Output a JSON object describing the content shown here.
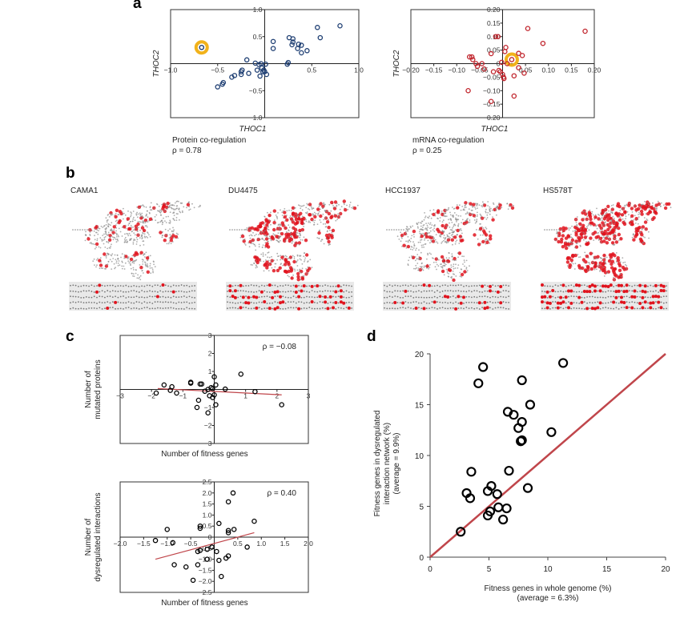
{
  "panel_labels": {
    "a": "a",
    "b": "b",
    "c": "c",
    "d": "d"
  },
  "panel_b": {
    "cell_lines": [
      "CAMA1",
      "DU4475",
      "HCC1937",
      "HS578T"
    ]
  },
  "colors": {
    "blue": "#1f3f73",
    "red": "#c0232b",
    "highlight": "#f1b21b",
    "black": "#000000",
    "fit_line": "#c0464b"
  },
  "chart_data": [
    {
      "id": "a1",
      "type": "scatter",
      "xlabel": "THOC1",
      "ylabel": "THOC2",
      "caption": "Protein co-regulation",
      "stat": "ρ = 0.78",
      "xlim": [
        -1,
        1
      ],
      "ylim": [
        -1,
        1
      ],
      "xticks": [
        [
          -1,
          "−1.0"
        ],
        [
          -0.5,
          "−0.5"
        ],
        [
          0.5,
          "0.5"
        ],
        [
          1,
          "1.0"
        ]
      ],
      "yticks": [
        [
          1,
          "1.0"
        ],
        [
          0.5,
          "0.5"
        ],
        [
          -0.5,
          "−0.5"
        ],
        [
          -1,
          "−1.0"
        ]
      ],
      "highlight": [
        -0.67,
        0.3
      ],
      "points": [
        [
          -0.5,
          -0.43
        ],
        [
          -0.45,
          -0.38
        ],
        [
          -0.44,
          -0.35
        ],
        [
          -0.35,
          -0.25
        ],
        [
          -0.32,
          -0.22
        ],
        [
          -0.25,
          -0.2
        ],
        [
          -0.25,
          -0.15
        ],
        [
          -0.24,
          -0.12
        ],
        [
          -0.17,
          -0.18
        ],
        [
          -0.19,
          0.07
        ],
        [
          -0.1,
          0.01
        ],
        [
          -0.08,
          -0.12
        ],
        [
          -0.06,
          -0.02
        ],
        [
          -0.04,
          0.0
        ],
        [
          -0.03,
          -0.08
        ],
        [
          -0.05,
          -0.23
        ],
        [
          -0.02,
          -0.15
        ],
        [
          -0.01,
          -0.12
        ],
        [
          0.0,
          -0.15
        ],
        [
          0.01,
          -0.01
        ],
        [
          0.02,
          -0.2
        ],
        [
          0.09,
          0.41
        ],
        [
          0.09,
          0.28
        ],
        [
          0.24,
          -0.01
        ],
        [
          0.25,
          0.02
        ],
        [
          0.26,
          0.48
        ],
        [
          0.29,
          0.35
        ],
        [
          0.3,
          0.46
        ],
        [
          0.3,
          0.4
        ],
        [
          0.35,
          0.28
        ],
        [
          0.36,
          0.36
        ],
        [
          0.39,
          0.34
        ],
        [
          0.39,
          0.2
        ],
        [
          0.45,
          0.24
        ],
        [
          0.56,
          0.67
        ],
        [
          0.59,
          0.48
        ],
        [
          0.8,
          0.7
        ]
      ]
    },
    {
      "id": "a2",
      "type": "scatter",
      "xlabel": "THOC1",
      "ylabel": "THOC2",
      "caption": "mRNA co-regulation",
      "stat": "ρ = 0.25",
      "xlim": [
        -0.2,
        0.2
      ],
      "ylim": [
        -0.2,
        0.2
      ],
      "xticks": [
        [
          -0.2,
          "−0.20"
        ],
        [
          -0.15,
          "−0.15"
        ],
        [
          -0.1,
          "−0.10"
        ],
        [
          -0.05,
          "−0.05"
        ],
        [
          0.05,
          "0.05"
        ],
        [
          0.1,
          "0.10"
        ],
        [
          0.15,
          "0.15"
        ],
        [
          0.2,
          "0.20"
        ]
      ],
      "yticks": [
        [
          0.2,
          "0.20"
        ],
        [
          0.15,
          "0.15"
        ],
        [
          0.1,
          "0.10"
        ],
        [
          0.05,
          "0.05"
        ],
        [
          0,
          "0"
        ],
        [
          -0.05,
          "−0.05"
        ],
        [
          -0.1,
          "−0.10"
        ],
        [
          -0.15,
          "−0.15"
        ],
        [
          -0.2,
          "−0.20"
        ]
      ],
      "highlight": [
        0.02,
        0.015
      ],
      "points": [
        [
          -0.075,
          -0.1
        ],
        [
          -0.072,
          0.025
        ],
        [
          -0.067,
          0.025
        ],
        [
          -0.065,
          0.015
        ],
        [
          -0.058,
          0.0
        ],
        [
          -0.055,
          -0.01
        ],
        [
          -0.045,
          0.0
        ],
        [
          -0.04,
          -0.02
        ],
        [
          -0.025,
          0.037
        ],
        [
          -0.025,
          -0.14
        ],
        [
          -0.02,
          -0.03
        ],
        [
          -0.015,
          0.1
        ],
        [
          -0.01,
          0.1
        ],
        [
          -0.008,
          -0.025
        ],
        [
          -0.005,
          -0.03
        ],
        [
          -0.002,
          0.005
        ],
        [
          0.0,
          -0.04
        ],
        [
          0.002,
          -0.05
        ],
        [
          0.003,
          -0.055
        ],
        [
          0.005,
          0.045
        ],
        [
          0.007,
          0.06
        ],
        [
          0.01,
          0.0
        ],
        [
          0.025,
          -0.045
        ],
        [
          0.025,
          -0.12
        ],
        [
          0.035,
          -0.015
        ],
        [
          0.035,
          0.038
        ],
        [
          0.043,
          0.03
        ],
        [
          0.047,
          -0.035
        ],
        [
          0.055,
          0.13
        ],
        [
          0.088,
          0.075
        ],
        [
          0.18,
          0.12
        ]
      ]
    },
    {
      "id": "c1",
      "type": "scatter",
      "xlabel": "Number of fitness genes",
      "ylabel": [
        "Number of",
        "mutated proteins"
      ],
      "stat": "ρ = −0.08",
      "xlim": [
        -3,
        3
      ],
      "ylim": [
        -3,
        3
      ],
      "xticks": [
        [
          -3,
          "−3"
        ],
        [
          -2,
          "−2"
        ],
        [
          -1,
          "−1"
        ],
        [
          1,
          "1"
        ],
        [
          2,
          "2"
        ],
        [
          3,
          "3"
        ]
      ],
      "yticks": [
        [
          3,
          "3"
        ],
        [
          2,
          "2"
        ],
        [
          1,
          "1"
        ],
        [
          -1,
          "−1"
        ],
        [
          -2,
          "−2"
        ],
        [
          -3,
          "−3"
        ]
      ],
      "fit": [
        [
          -1.8,
          0.05
        ],
        [
          2.15,
          -0.3
        ]
      ],
      "points": [
        [
          -1.85,
          -0.2
        ],
        [
          -1.6,
          0.25
        ],
        [
          -1.35,
          0.15
        ],
        [
          -1.4,
          -0.05
        ],
        [
          -1.2,
          -0.2
        ],
        [
          -0.75,
          0.35
        ],
        [
          -0.75,
          0.4
        ],
        [
          -0.45,
          0.3
        ],
        [
          -0.4,
          0.3
        ],
        [
          -0.5,
          -0.6
        ],
        [
          -0.55,
          -1.0
        ],
        [
          -0.3,
          -0.1
        ],
        [
          -0.2,
          0.0
        ],
        [
          -0.2,
          -1.3
        ],
        [
          -0.15,
          -0.35
        ],
        [
          -0.1,
          0.1
        ],
        [
          -0.05,
          0.05
        ],
        [
          -0.05,
          -0.45
        ],
        [
          0.0,
          -0.3
        ],
        [
          0.0,
          0.7
        ],
        [
          0.05,
          0.25
        ],
        [
          0.05,
          -0.85
        ],
        [
          0.35,
          0.02
        ],
        [
          0.85,
          0.85
        ],
        [
          1.3,
          -0.12
        ],
        [
          2.15,
          -0.85
        ]
      ]
    },
    {
      "id": "c2",
      "type": "scatter",
      "xlabel": "Number of fitness genes",
      "ylabel": [
        "Number of",
        "dysregulated interactions"
      ],
      "stat": "ρ = 0.40",
      "xlim": [
        -2,
        2
      ],
      "ylim": [
        -2.5,
        2.5
      ],
      "xticks": [
        [
          -2,
          "−2.0"
        ],
        [
          -1.5,
          "−1.5"
        ],
        [
          -1,
          "−1.0"
        ],
        [
          -0.5,
          "−0.5"
        ],
        [
          0.5,
          "0.5"
        ],
        [
          1,
          "1.0"
        ],
        [
          1.5,
          "1.5"
        ],
        [
          2,
          "2.0"
        ]
      ],
      "yticks": [
        [
          2.5,
          "2.5"
        ],
        [
          2,
          "2.0"
        ],
        [
          1.5,
          "1.5"
        ],
        [
          1,
          "1.0"
        ],
        [
          0.5,
          "0.5"
        ],
        [
          0,
          "0"
        ],
        [
          -0.5,
          "−0.5"
        ],
        [
          -1,
          "−1.0"
        ],
        [
          -1.5,
          "−1.5"
        ],
        [
          -2,
          "−2.0"
        ],
        [
          -2.5,
          "−2.5"
        ]
      ],
      "fit": [
        [
          -1.25,
          -1.0
        ],
        [
          0.85,
          0.2
        ]
      ],
      "points": [
        [
          -1.25,
          -0.15
        ],
        [
          -1.0,
          0.35
        ],
        [
          -0.88,
          -0.25
        ],
        [
          -0.85,
          -1.25
        ],
        [
          -0.6,
          -1.35
        ],
        [
          -0.45,
          -1.95
        ],
        [
          -0.35,
          -1.25
        ],
        [
          -0.3,
          0.4
        ],
        [
          -0.3,
          0.5
        ],
        [
          -0.35,
          -0.65
        ],
        [
          -0.3,
          -0.6
        ],
        [
          -0.15,
          -0.55
        ],
        [
          -0.15,
          -1.0
        ],
        [
          -0.05,
          -0.45
        ],
        [
          0.05,
          -0.65
        ],
        [
          0.1,
          -1.05
        ],
        [
          0.1,
          0.62
        ],
        [
          0.15,
          -1.78
        ],
        [
          0.25,
          -0.95
        ],
        [
          0.3,
          -0.85
        ],
        [
          0.3,
          0.2
        ],
        [
          0.3,
          0.3
        ],
        [
          0.3,
          1.6
        ],
        [
          0.4,
          2.0
        ],
        [
          0.42,
          0.35
        ],
        [
          0.7,
          -0.45
        ],
        [
          0.85,
          0.72
        ]
      ]
    },
    {
      "id": "d",
      "type": "scatter",
      "xlabel": [
        "Fitness genes in whole genome (%)",
        "(average = 6.3%)"
      ],
      "ylabel": [
        "Fitness genes in dysregulated",
        "interaction network (%)",
        "(average = 9.9%)"
      ],
      "xlim": [
        0,
        20
      ],
      "ylim": [
        0,
        20
      ],
      "xticks": [
        [
          0,
          "0"
        ],
        [
          5,
          "5"
        ],
        [
          10,
          "10"
        ],
        [
          15,
          "15"
        ],
        [
          20,
          "20"
        ]
      ],
      "yticks": [
        [
          0,
          "0"
        ],
        [
          5,
          "5"
        ],
        [
          10,
          "10"
        ],
        [
          15,
          "15"
        ],
        [
          20,
          "20"
        ]
      ],
      "fit": [
        [
          0,
          0
        ],
        [
          20,
          20
        ]
      ],
      "points": [
        [
          2.6,
          2.5
        ],
        [
          3.1,
          6.3
        ],
        [
          3.4,
          5.8
        ],
        [
          3.5,
          8.4
        ],
        [
          4.1,
          17.1
        ],
        [
          4.5,
          18.7
        ],
        [
          4.9,
          4.1
        ],
        [
          4.9,
          6.5
        ],
        [
          5.1,
          4.5
        ],
        [
          5.2,
          7.0
        ],
        [
          5.7,
          6.2
        ],
        [
          5.8,
          4.9
        ],
        [
          6.2,
          3.7
        ],
        [
          6.5,
          4.8
        ],
        [
          6.6,
          14.3
        ],
        [
          6.7,
          8.5
        ],
        [
          7.1,
          14.0
        ],
        [
          7.5,
          12.7
        ],
        [
          7.7,
          11.4
        ],
        [
          7.8,
          11.5
        ],
        [
          7.8,
          17.4
        ],
        [
          7.8,
          13.3
        ],
        [
          8.3,
          6.8
        ],
        [
          8.5,
          15.0
        ],
        [
          10.3,
          12.3
        ],
        [
          11.3,
          19.1
        ]
      ]
    }
  ]
}
